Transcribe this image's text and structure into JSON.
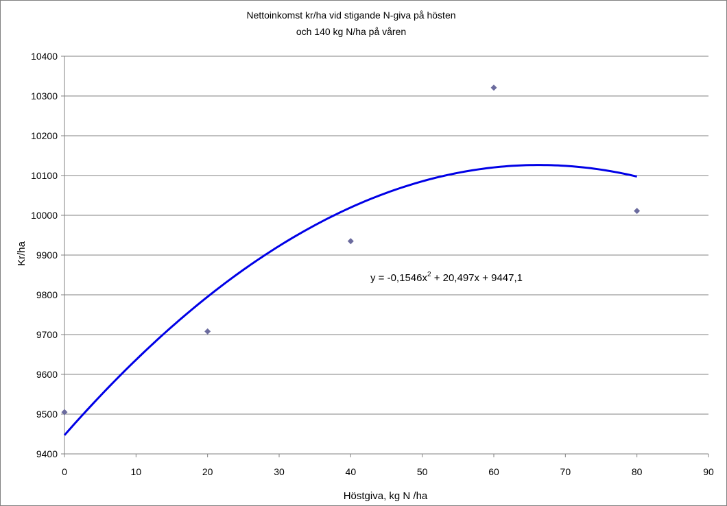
{
  "chart_data": {
    "type": "scatter",
    "title_lines": [
      "Nettoinkomst kr/ha vid stigande N-giva på hösten",
      "och 140 kg N/ha på våren"
    ],
    "xlabel": "Höstgiva, kg N /ha",
    "ylabel": "Kr/ha",
    "xlim": [
      0,
      90
    ],
    "ylim": [
      9400,
      10400
    ],
    "xticks": [
      0,
      10,
      20,
      30,
      40,
      50,
      60,
      70,
      80,
      90
    ],
    "yticks": [
      9400,
      9500,
      9600,
      9700,
      9800,
      9900,
      10000,
      10100,
      10200,
      10300,
      10400
    ],
    "grid": "horizontal",
    "series": [
      {
        "x": [
          0,
          20,
          40,
          60,
          80
        ],
        "y": [
          9505,
          9708,
          9935,
          10321,
          10011
        ],
        "marker": "diamond",
        "color": "#6b6b9e"
      }
    ],
    "trendline": {
      "type": "polynomial",
      "coefficients": {
        "a": -0.1546,
        "b": 20.497,
        "c": 9447.1
      },
      "x_range": [
        0,
        80
      ],
      "color": "#0000e6",
      "equation_base": "y = -0,1546x",
      "equation_sup": "2",
      "equation_rest": " + 20,497x + 9447,1"
    }
  }
}
